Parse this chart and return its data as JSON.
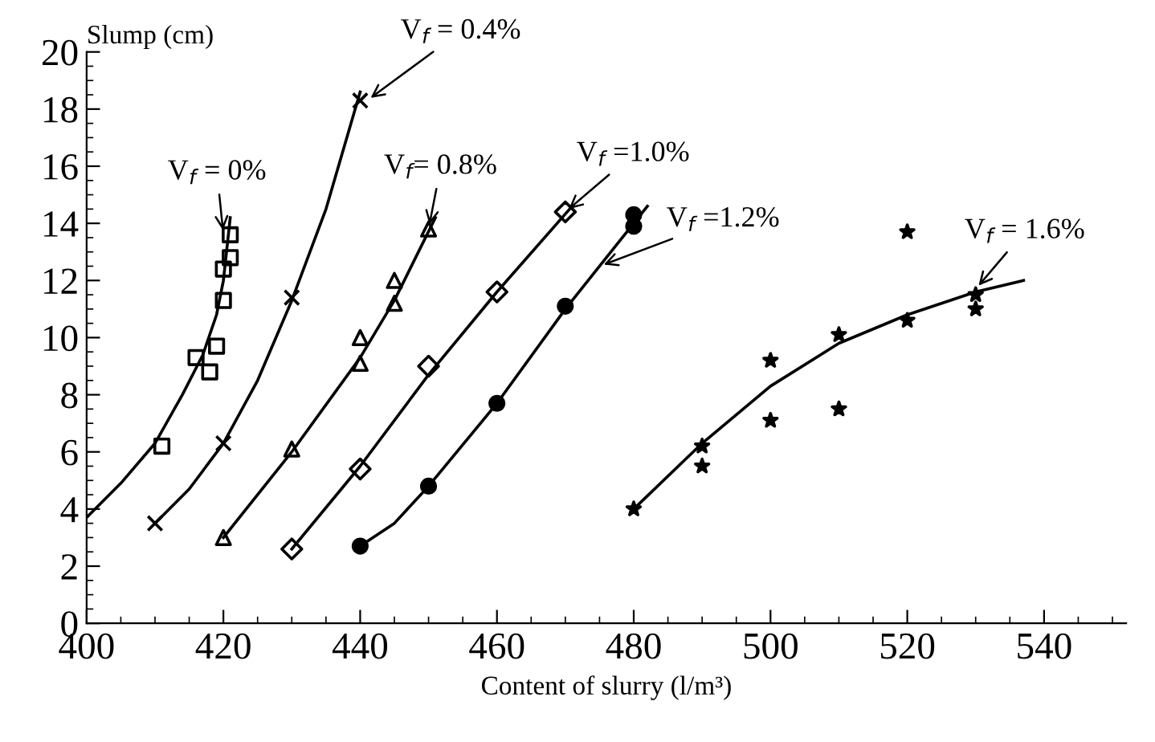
{
  "chart_data": {
    "type": "scatter",
    "xlabel": "Content of slurry (l/m³)",
    "ylabel": "Slump (cm)",
    "xlim": [
      400,
      552
    ],
    "ylim": [
      0,
      20
    ],
    "xticks": [
      400,
      420,
      440,
      460,
      480,
      500,
      520,
      540
    ],
    "yticks": [
      0,
      2,
      4,
      6,
      8,
      10,
      12,
      14,
      16,
      18,
      20
    ],
    "grid": false,
    "legend": false,
    "series": [
      {
        "type": "scatter",
        "marker": "square",
        "color": "#000000",
        "x": [
          411,
          416,
          418,
          419,
          420,
          420,
          421,
          421
        ],
        "values": [
          6.2,
          9.3,
          8.8,
          9.7,
          11.3,
          12.4,
          12.8,
          13.6
        ]
      },
      {
        "type": "line",
        "marker": "none",
        "line_style": "solid",
        "color": "#000000",
        "x": [
          400,
          405,
          410,
          414,
          417,
          419,
          420,
          421
        ],
        "values": [
          3.7,
          4.9,
          6.3,
          8,
          9.4,
          10.8,
          12,
          14.2
        ]
      },
      {
        "type": "scatter",
        "marker": "cross",
        "color": "#000000",
        "x": [
          410,
          420,
          430,
          440
        ],
        "values": [
          3.5,
          6.3,
          11.4,
          18.3
        ]
      },
      {
        "type": "line",
        "marker": "none",
        "line_style": "solid",
        "color": "#000000",
        "x": [
          410,
          415,
          420,
          425,
          430,
          435,
          440
        ],
        "values": [
          3.5,
          4.7,
          6.3,
          8.5,
          11.3,
          14.5,
          18.6
        ]
      },
      {
        "type": "scatter",
        "marker": "triangle",
        "color": "#000000",
        "x": [
          420,
          430,
          440,
          440,
          445,
          445,
          450
        ],
        "values": [
          3.0,
          6.1,
          9.1,
          10,
          11.2,
          12,
          13.8
        ]
      },
      {
        "type": "line",
        "marker": "none",
        "line_style": "solid",
        "color": "#000000",
        "x": [
          420,
          430,
          440,
          445,
          451
        ],
        "values": [
          3,
          6,
          9.3,
          11.3,
          14.2
        ]
      },
      {
        "type": "scatter",
        "marker": "diamond",
        "color": "#000000",
        "x": [
          430,
          440,
          450,
          460,
          470
        ],
        "values": [
          2.6,
          5.4,
          9.0,
          11.6,
          14.4
        ]
      },
      {
        "type": "line",
        "marker": "none",
        "line_style": "solid",
        "color": "#000000",
        "x": [
          430,
          440,
          450,
          460,
          471
        ],
        "values": [
          2.6,
          5.5,
          8.7,
          11.6,
          14.6
        ]
      },
      {
        "type": "scatter",
        "marker": "circle",
        "color": "#000000",
        "x": [
          440,
          450,
          460,
          470,
          480,
          480
        ],
        "values": [
          2.7,
          4.8,
          7.7,
          11.1,
          13.9,
          14.3
        ]
      },
      {
        "type": "line",
        "marker": "none",
        "line_style": "solid",
        "color": "#000000",
        "x": [
          440,
          445,
          450,
          460,
          470,
          482
        ],
        "values": [
          2.7,
          3.5,
          4.8,
          7.7,
          11,
          14.6
        ]
      },
      {
        "type": "scatter",
        "marker": "star",
        "color": "#000000",
        "x": [
          480,
          490,
          490,
          500,
          500,
          510,
          510,
          520,
          520,
          530,
          530
        ],
        "values": [
          4.0,
          6.2,
          5.5,
          9.2,
          7.1,
          10.1,
          7.5,
          10.6,
          13.7,
          11.5,
          11.0
        ]
      },
      {
        "type": "line",
        "marker": "none",
        "line_style": "solid",
        "color": "#000000",
        "x": [
          480,
          490,
          500,
          510,
          520,
          530,
          537
        ],
        "values": [
          4,
          6.3,
          8.3,
          9.8,
          10.8,
          11.6,
          12
        ]
      }
    ],
    "annotations": [
      {
        "text": "V$_{f}$ = 0%",
        "x": 420,
        "y": 13.6
      },
      {
        "text": "V$_{f}$ = 0.4%",
        "x": 441,
        "y": 18.3
      },
      {
        "text": "V$_{f}$= 0.8%",
        "x": 450,
        "y": 13.8
      },
      {
        "text": "V$_{f}$ =1.0%",
        "x": 470,
        "y": 14.4
      },
      {
        "text": "V$_{f}$ =1.2%",
        "x": 475,
        "y": 12.5
      },
      {
        "text": "V$_{f}$ = 1.6%",
        "x": 530,
        "y": 11.7
      }
    ]
  }
}
